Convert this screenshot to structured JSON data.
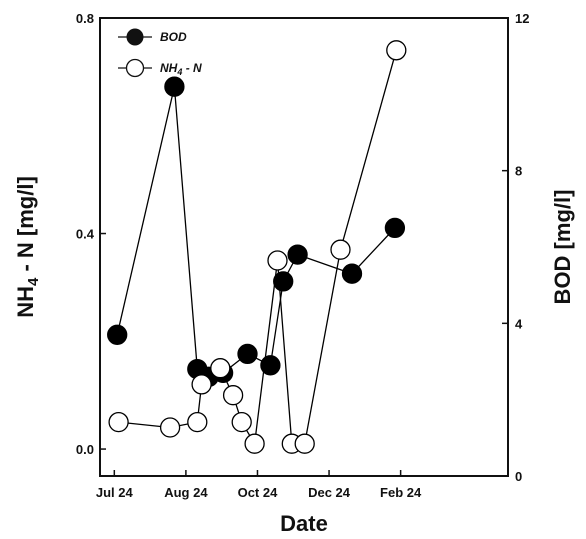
{
  "chart_data": {
    "type": "line",
    "xlabel": "Date",
    "x_ticks": [
      "Jul 24",
      "Aug 24",
      "Oct 24",
      "Dec 24",
      "Feb 24"
    ],
    "xlim": [
      -0.1,
      2.75
    ],
    "x_tick_values": [
      0,
      0.5,
      1,
      1.5,
      2
    ],
    "left_axis": {
      "label": "NH4 - N [mg/l]",
      "label_main": "NH",
      "label_sub": "4",
      "label_rest": " - N [mg/l]",
      "ylim": [
        -0.05,
        0.8
      ],
      "ticks": [
        "0.0",
        "0.4",
        "0.8"
      ],
      "tick_values": [
        0.0,
        0.4,
        0.8
      ]
    },
    "right_axis": {
      "label": "BOD [mg/l]",
      "ylim": [
        0,
        12
      ],
      "ticks": [
        "0",
        "4",
        "8",
        "12"
      ],
      "tick_values": [
        0,
        4,
        8,
        12
      ]
    },
    "series": [
      {
        "name": "BOD",
        "axis": "right",
        "marker": "filled-circle",
        "color": "#000000",
        "x": [
          0.02,
          0.42,
          0.58,
          0.66,
          0.76,
          0.93,
          1.09,
          1.18,
          1.28,
          1.66,
          1.96
        ],
        "values": [
          3.7,
          10.2,
          2.8,
          2.6,
          2.7,
          3.2,
          2.9,
          5.1,
          5.8,
          5.3,
          6.5
        ]
      },
      {
        "name": "NH4 - N",
        "legend_main": "NH",
        "legend_sub": "4",
        "legend_rest": " - N",
        "axis": "left",
        "marker": "open-circle",
        "color": "#000000",
        "x": [
          0.03,
          0.39,
          0.58,
          0.61,
          0.74,
          0.83,
          0.89,
          0.98,
          1.14,
          1.24,
          1.33,
          1.58,
          1.97
        ],
        "values": [
          0.05,
          0.04,
          0.05,
          0.12,
          0.15,
          0.1,
          0.05,
          0.01,
          0.35,
          0.01,
          0.01,
          0.37,
          0.74
        ]
      }
    ],
    "legend_position": "top-left",
    "grid": false,
    "title": ""
  }
}
